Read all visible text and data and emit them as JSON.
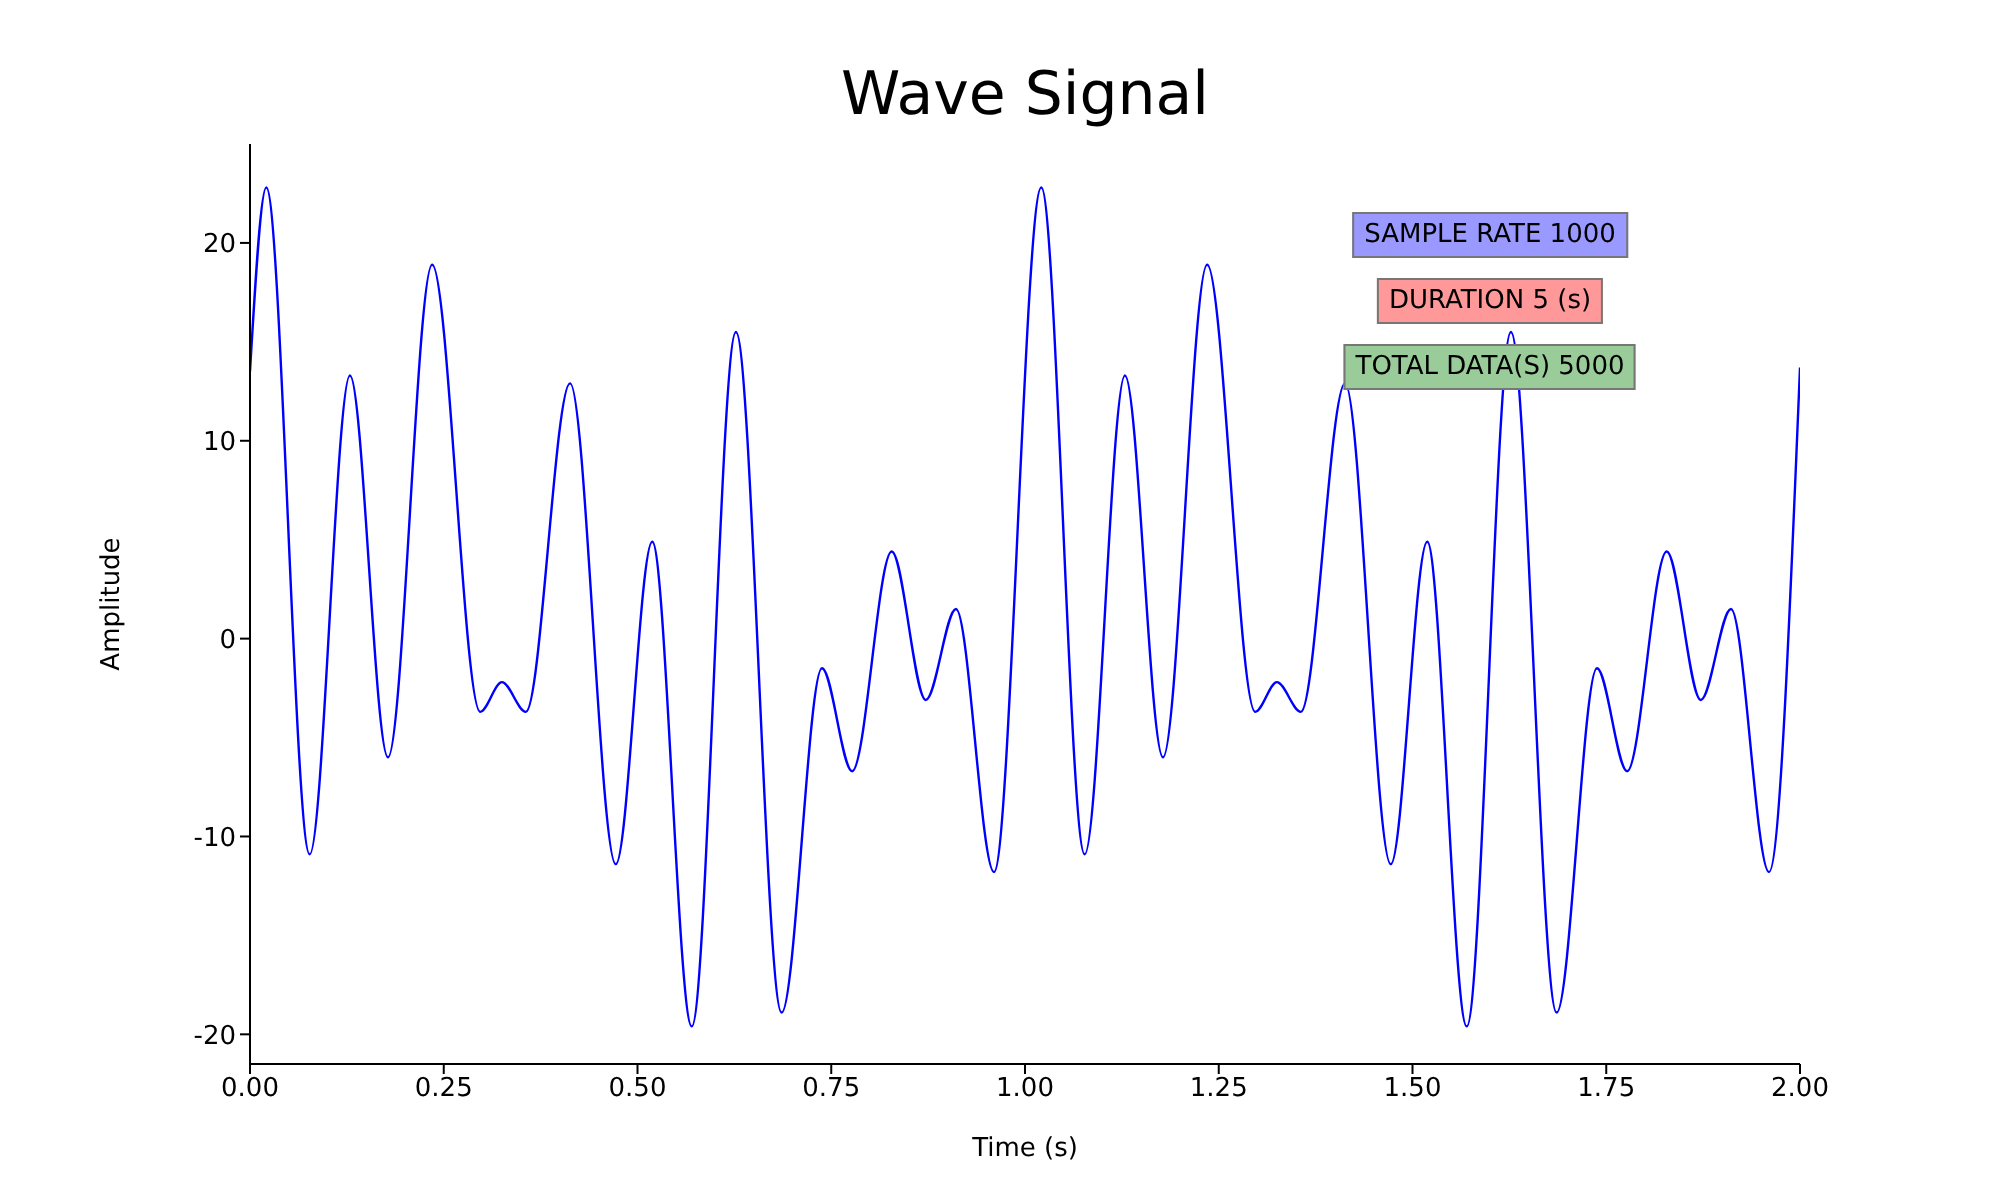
{
  "chart_data": {
    "type": "line",
    "title": "Wave Signal",
    "xlabel": "Time (s)",
    "ylabel": "Amplitude",
    "annotations": [
      "SAMPLE RATE 1000",
      "DURATION 5 (s)",
      "TOTAL DATA(S) 5000"
    ],
    "x": [
      0,
      0.021,
      0.077,
      0.129,
      0.178,
      0.235,
      0.297,
      0.325,
      0.356,
      0.413,
      0.472,
      0.519,
      0.57,
      0.627,
      0.686,
      0.738,
      0.777,
      0.828,
      0.872,
      0.911,
      0.96,
      1.021,
      1.077,
      1.129,
      1.178,
      1.235,
      1.297,
      1.325,
      1.356,
      1.413,
      1.472,
      1.519,
      1.57,
      1.627,
      1.686,
      1.738,
      1.777,
      1.828,
      1.872,
      1.911,
      1.96,
      2.0
    ],
    "series": [
      {
        "color": "#0000ff",
        "values": [
          13.5,
          22.8,
          -10.9,
          13.3,
          -6.0,
          18.9,
          -3.7,
          -2.2,
          -3.7,
          12.9,
          -11.4,
          4.9,
          -19.6,
          15.5,
          -18.9,
          -1.5,
          -6.7,
          4.4,
          -3.1,
          1.5,
          -11.8,
          22.8,
          -10.9,
          13.3,
          -6.0,
          18.9,
          -3.7,
          -2.2,
          -3.7,
          12.9,
          -11.4,
          4.9,
          -19.6,
          15.5,
          -18.9,
          -1.5,
          -6.7,
          4.4,
          -3.1,
          1.5,
          -11.8,
          13.7
        ]
      }
    ],
    "xlim": [
      0,
      2
    ],
    "xticks": [
      {
        "value": 0,
        "label": "0.00"
      },
      {
        "value": 0.25,
        "label": "0.25"
      },
      {
        "value": 0.5,
        "label": "0.50"
      },
      {
        "value": 0.75,
        "label": "0.75"
      },
      {
        "value": 1,
        "label": "1.00"
      },
      {
        "value": 1.25,
        "label": "1.25"
      },
      {
        "value": 1.5,
        "label": "1.50"
      },
      {
        "value": 1.75,
        "label": "1.75"
      },
      {
        "value": 2,
        "label": "2.00"
      }
    ],
    "ylim": [
      -21.5,
      25
    ],
    "yticks": [
      -20,
      -10,
      0,
      10,
      20
    ],
    "grid": false,
    "legend": false,
    "marker": "none",
    "line_style": "solid"
  }
}
